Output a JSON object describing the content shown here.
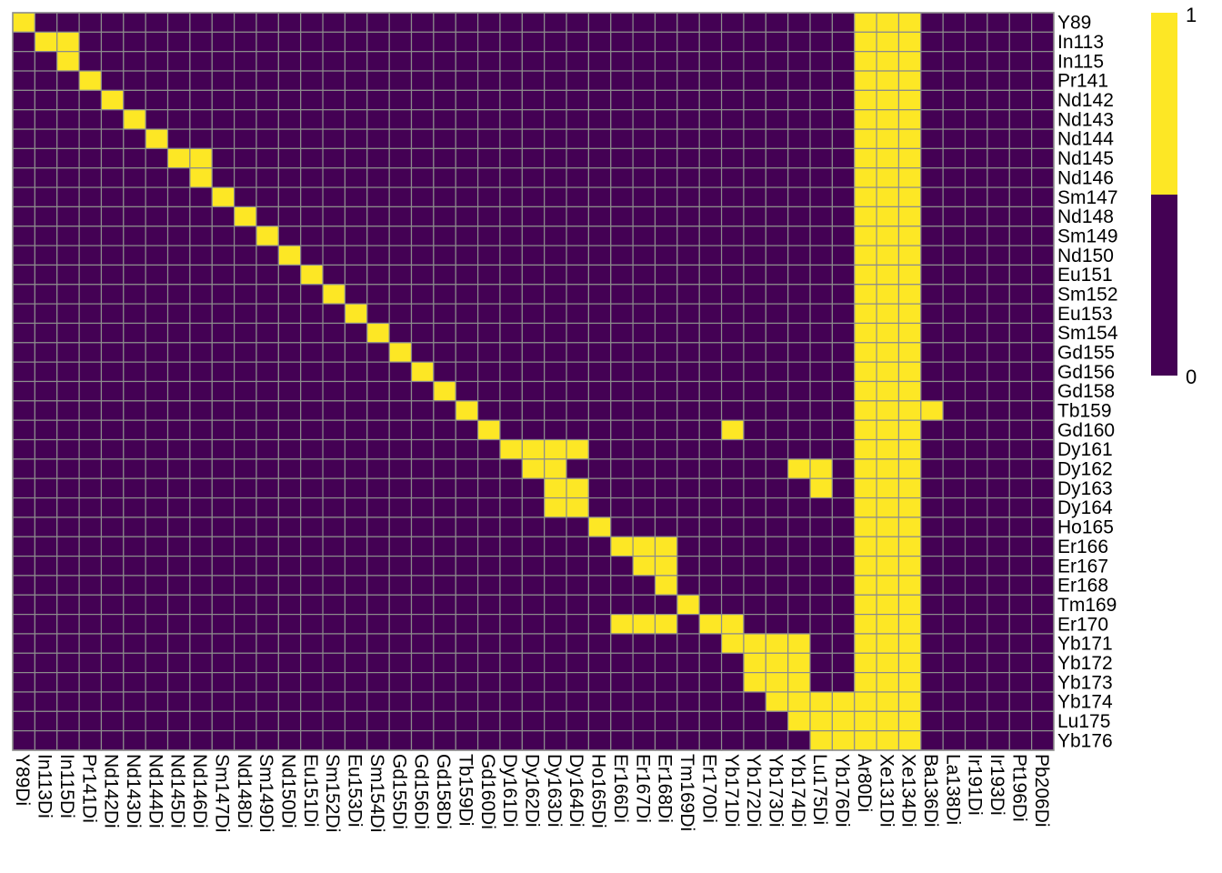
{
  "chart_data": {
    "type": "heatmap",
    "title": "",
    "xlabel": "",
    "ylabel": "",
    "rows": [
      "Y89",
      "In113",
      "In115",
      "Pr141",
      "Nd142",
      "Nd143",
      "Nd144",
      "Nd145",
      "Nd146",
      "Sm147",
      "Nd148",
      "Sm149",
      "Nd150",
      "Eu151",
      "Sm152",
      "Eu153",
      "Sm154",
      "Gd155",
      "Gd156",
      "Gd158",
      "Tb159",
      "Gd160",
      "Dy161",
      "Dy162",
      "Dy163",
      "Dy164",
      "Ho165",
      "Er166",
      "Er167",
      "Er168",
      "Tm169",
      "Er170",
      "Yb171",
      "Yb172",
      "Yb173",
      "Yb174",
      "Lu175",
      "Yb176"
    ],
    "columns": [
      "Y89Di",
      "In113Di",
      "In115Di",
      "Pr141Di",
      "Nd142Di",
      "Nd143Di",
      "Nd144Di",
      "Nd145Di",
      "Nd146Di",
      "Sm147Di",
      "Nd148Di",
      "Sm149Di",
      "Nd150Di",
      "Eu151Di",
      "Sm152Di",
      "Eu153Di",
      "Sm154Di",
      "Gd155Di",
      "Gd156Di",
      "Gd158Di",
      "Tb159Di",
      "Gd160Di",
      "Dy161Di",
      "Dy162Di",
      "Dy163Di",
      "Dy164Di",
      "Ho165Di",
      "Er166Di",
      "Er167Di",
      "Er168Di",
      "Tm169Di",
      "Er170Di",
      "Yb171Di",
      "Yb172Di",
      "Yb173Di",
      "Yb174Di",
      "Lu175Di",
      "Yb176Di",
      "Ar80Di",
      "Xe131Di",
      "Xe134Di",
      "Ba136Di",
      "La138Di",
      "Ir191Di",
      "Ir193Di",
      "Pt196Di",
      "Pb206Di"
    ],
    "nonzero_cells": [
      [
        0,
        0
      ],
      [
        1,
        1
      ],
      [
        1,
        2
      ],
      [
        2,
        2
      ],
      [
        3,
        3
      ],
      [
        4,
        4
      ],
      [
        5,
        5
      ],
      [
        6,
        6
      ],
      [
        7,
        7
      ],
      [
        7,
        8
      ],
      [
        8,
        8
      ],
      [
        9,
        9
      ],
      [
        10,
        10
      ],
      [
        11,
        11
      ],
      [
        12,
        12
      ],
      [
        13,
        13
      ],
      [
        14,
        14
      ],
      [
        15,
        15
      ],
      [
        16,
        16
      ],
      [
        17,
        17
      ],
      [
        18,
        18
      ],
      [
        19,
        19
      ],
      [
        20,
        20
      ],
      [
        20,
        41
      ],
      [
        21,
        21
      ],
      [
        21,
        32
      ],
      [
        22,
        22
      ],
      [
        22,
        23
      ],
      [
        22,
        24
      ],
      [
        22,
        25
      ],
      [
        23,
        23
      ],
      [
        23,
        24
      ],
      [
        23,
        35
      ],
      [
        23,
        36
      ],
      [
        24,
        24
      ],
      [
        24,
        25
      ],
      [
        24,
        36
      ],
      [
        25,
        24
      ],
      [
        25,
        25
      ],
      [
        26,
        26
      ],
      [
        27,
        27
      ],
      [
        27,
        28
      ],
      [
        27,
        29
      ],
      [
        28,
        28
      ],
      [
        28,
        29
      ],
      [
        29,
        29
      ],
      [
        30,
        30
      ],
      [
        31,
        27
      ],
      [
        31,
        28
      ],
      [
        31,
        29
      ],
      [
        31,
        31
      ],
      [
        31,
        32
      ],
      [
        32,
        32
      ],
      [
        32,
        33
      ],
      [
        32,
        34
      ],
      [
        32,
        35
      ],
      [
        33,
        33
      ],
      [
        33,
        34
      ],
      [
        33,
        35
      ],
      [
        34,
        33
      ],
      [
        34,
        34
      ],
      [
        34,
        35
      ],
      [
        35,
        34
      ],
      [
        35,
        35
      ],
      [
        35,
        36
      ],
      [
        35,
        37
      ],
      [
        36,
        35
      ],
      [
        36,
        36
      ],
      [
        36,
        37
      ],
      [
        37,
        36
      ],
      [
        37,
        37
      ]
    ],
    "full_columns": [
      38,
      39,
      40
    ],
    "value_range": [
      0,
      1
    ],
    "colorscale": {
      "low": "#440154",
      "high": "#fde725",
      "ticks": [
        "0",
        "1"
      ]
    },
    "grid_color": "#8c8c8c",
    "legend": "right"
  }
}
